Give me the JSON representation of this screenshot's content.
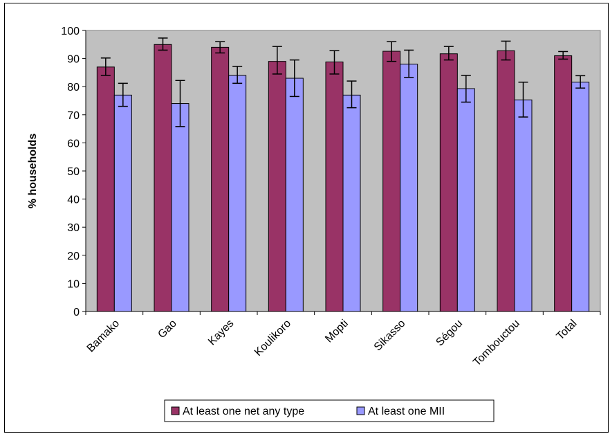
{
  "chart_data": {
    "type": "bar",
    "title": "",
    "xlabel": "",
    "ylabel": "% households",
    "ylim": [
      0,
      100
    ],
    "yticks": [
      0,
      10,
      20,
      30,
      40,
      50,
      60,
      70,
      80,
      90,
      100
    ],
    "grid": false,
    "legend_position": "bottom",
    "categories": [
      "Bamako",
      "Gao",
      "Kayes",
      "Koulikoro",
      "Mopti",
      "Sikasso",
      "Ségou",
      "Tombouctou",
      "Total"
    ],
    "series": [
      {
        "name": "At least one net any type",
        "color": "#993366",
        "values": [
          87,
          95,
          94,
          89,
          88.8,
          92.6,
          91.7,
          92.8,
          91
        ],
        "error_low": [
          84,
          93,
          92,
          84.5,
          84.5,
          89,
          89.5,
          89.5,
          89.8
        ],
        "error_high": [
          90.2,
          97.3,
          96,
          94.3,
          92.8,
          96,
          94.3,
          96.2,
          92.5
        ]
      },
      {
        "name": "At least one MII",
        "color": "#9999ff",
        "values": [
          77,
          74,
          84,
          83,
          77,
          88,
          79.3,
          75.3,
          81.6
        ],
        "error_low": [
          73,
          65.8,
          81.2,
          76.5,
          72.5,
          83.3,
          74.5,
          69.2,
          79.5
        ],
        "error_high": [
          81.2,
          82.2,
          87.2,
          89.5,
          82,
          93,
          84,
          81.6,
          83.9
        ]
      }
    ]
  }
}
